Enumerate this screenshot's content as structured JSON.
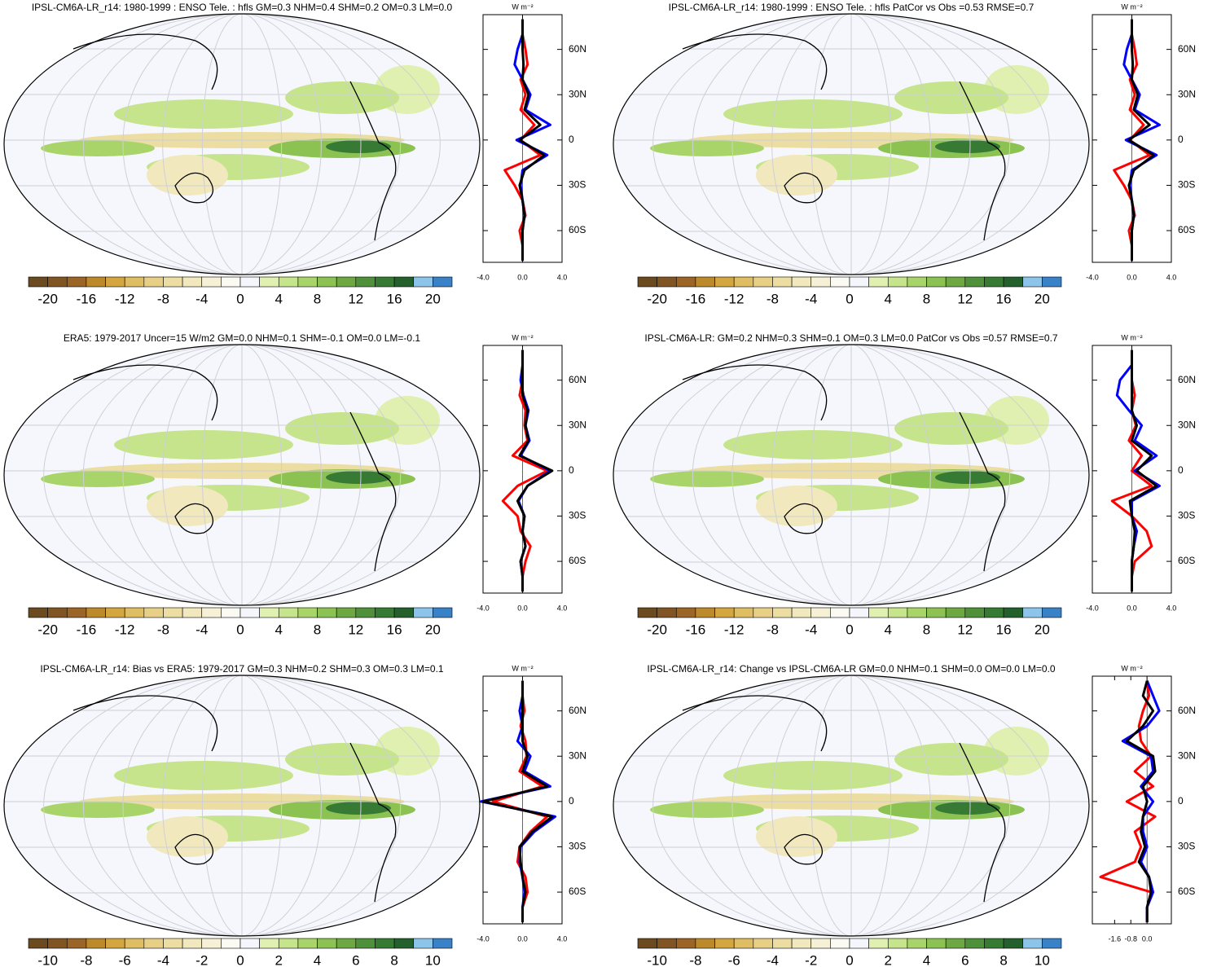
{
  "chart_data": [
    {
      "type": "map",
      "title": "IPSL-CM6A-LR_r14: 1980-1999 : ENSO Tele. : hfls GM=0.3 NHM=0.4 SHM=0.2 OM=0.3 LM=0.0",
      "colorbar_ticks": [
        -20,
        -16,
        -12,
        -8,
        -4,
        0,
        4,
        8,
        12,
        16,
        20
      ],
      "clim": [
        -22,
        22
      ],
      "colors": [
        "#6b4a1f",
        "#805523",
        "#9a6526",
        "#bd8a2b",
        "#d3a640",
        "#dfbd63",
        "#e7cf86",
        "#ecdda3",
        "#f1e8bd",
        "#f5f0d6",
        "#fafaf3",
        "#f4f6fb",
        "#dff0b0",
        "#c5e48c",
        "#a8d46a",
        "#8cc252",
        "#6ea843",
        "#4f913a",
        "#377a34",
        "#24602c",
        "#8cc4ea",
        "#3a82c8"
      ],
      "xlabel": "W m⁻²",
      "xlim": [
        -4,
        4
      ],
      "xticks": [
        {
          "value": -4,
          "label": "-4.0"
        },
        {
          "value": 0,
          "label": "0.0"
        },
        {
          "value": 4,
          "label": "4.0"
        }
      ],
      "ylim": [
        -81,
        83
      ],
      "yticks": [
        {
          "value": 60,
          "label": "60N"
        },
        {
          "value": 30,
          "label": "30N"
        },
        0,
        {
          "value": -30,
          "label": "30S"
        },
        {
          "value": -60,
          "label": "60S"
        }
      ],
      "lat": [
        -80,
        -70,
        -60,
        -50,
        -40,
        -30,
        -20,
        -10,
        0,
        10,
        20,
        30,
        40,
        50,
        60,
        70,
        80
      ],
      "series": [
        {
          "color": "#ff0000",
          "values": [
            0,
            0,
            -0.3,
            0.3,
            0,
            -0.8,
            -1.8,
            1.8,
            -0.2,
            1.2,
            -0.2,
            0.3,
            -0.2,
            0.5,
            0.3,
            0,
            0
          ]
        },
        {
          "color": "#0000ff",
          "values": [
            0,
            0,
            0,
            0.2,
            0,
            -0.2,
            0,
            2.5,
            -0.6,
            2.8,
            0.3,
            0.8,
            0,
            -0.8,
            -0.5,
            0,
            0
          ]
        },
        {
          "color": "#000000",
          "values": [
            0,
            0,
            0,
            0.2,
            0,
            -0.3,
            0.2,
            2.2,
            -0.3,
            1.8,
            0.2,
            0.6,
            0,
            0.1,
            0,
            0,
            0
          ]
        }
      ]
    },
    {
      "type": "map",
      "title": "IPSL-CM6A-LR_r14: 1980-1999 : ENSO Tele. : hfls PatCor vs Obs =0.53 RMSE=0.7",
      "colorbar_ticks": [
        -20,
        -16,
        -12,
        -8,
        -4,
        0,
        4,
        8,
        12,
        16,
        20
      ],
      "clim": [
        -22,
        22
      ],
      "colors": [
        "#6b4a1f",
        "#805523",
        "#9a6526",
        "#bd8a2b",
        "#d3a640",
        "#dfbd63",
        "#e7cf86",
        "#ecdda3",
        "#f1e8bd",
        "#f5f0d6",
        "#fafaf3",
        "#f4f6fb",
        "#dff0b0",
        "#c5e48c",
        "#a8d46a",
        "#8cc252",
        "#6ea843",
        "#4f913a",
        "#377a34",
        "#24602c",
        "#8cc4ea",
        "#3a82c8"
      ],
      "xlabel": "W m⁻²",
      "xlim": [
        -4,
        4
      ],
      "xticks": [
        {
          "value": -4,
          "label": "-4.0"
        },
        {
          "value": 0,
          "label": "0.0"
        },
        {
          "value": 4,
          "label": "4.0"
        }
      ],
      "ylim": [
        -81,
        83
      ],
      "yticks": [
        {
          "value": 60,
          "label": "60N"
        },
        {
          "value": 30,
          "label": "30N"
        },
        0,
        {
          "value": -30,
          "label": "30S"
        },
        {
          "value": -60,
          "label": "60S"
        }
      ],
      "lat": [
        -80,
        -70,
        -60,
        -50,
        -40,
        -30,
        -20,
        -10,
        0,
        10,
        20,
        30,
        40,
        50,
        60,
        70,
        80
      ],
      "series": [
        {
          "color": "#ff0000",
          "values": [
            0,
            0,
            -0.3,
            0.3,
            0,
            -0.8,
            -1.8,
            1.8,
            -0.2,
            1.2,
            -0.2,
            0.3,
            -0.2,
            0.5,
            0.3,
            0,
            0
          ]
        },
        {
          "color": "#0000ff",
          "values": [
            0,
            0,
            0,
            0.2,
            0,
            -0.2,
            0,
            2.5,
            -0.6,
            2.8,
            0.3,
            0.8,
            0,
            -0.8,
            -0.5,
            0,
            0
          ]
        },
        {
          "color": "#000000",
          "values": [
            0,
            0,
            0,
            0.2,
            0,
            -0.3,
            0.2,
            2.2,
            -0.3,
            1.8,
            0.2,
            0.6,
            0,
            0.1,
            0,
            0,
            0
          ]
        }
      ]
    },
    {
      "type": "map",
      "title": "ERA5: 1979-2017 Uncer=15 W/m2 GM=0.0 NHM=0.1 SHM=-0.1 OM=0.0 LM=-0.1",
      "colorbar_ticks": [
        -20,
        -16,
        -12,
        -8,
        -4,
        0,
        4,
        8,
        12,
        16,
        20
      ],
      "clim": [
        -22,
        22
      ],
      "colors": [
        "#6b4a1f",
        "#805523",
        "#9a6526",
        "#bd8a2b",
        "#d3a640",
        "#dfbd63",
        "#e7cf86",
        "#ecdda3",
        "#f1e8bd",
        "#f5f0d6",
        "#fafaf3",
        "#f4f6fb",
        "#dff0b0",
        "#c5e48c",
        "#a8d46a",
        "#8cc252",
        "#6ea843",
        "#4f913a",
        "#377a34",
        "#24602c",
        "#8cc4ea",
        "#3a82c8"
      ],
      "xlabel": "W m⁻²",
      "xlim": [
        -4,
        4
      ],
      "xticks": [
        {
          "value": -4,
          "label": "-4.0"
        },
        {
          "value": 0,
          "label": "0.0"
        },
        {
          "value": 4,
          "label": "4.0"
        }
      ],
      "ylim": [
        -81,
        83
      ],
      "yticks": [
        {
          "value": 60,
          "label": "60N"
        },
        {
          "value": 30,
          "label": "30N"
        },
        0,
        {
          "value": -30,
          "label": "30S"
        },
        {
          "value": -60,
          "label": "60S"
        }
      ],
      "lat": [
        -80,
        -70,
        -60,
        -50,
        -40,
        -30,
        -20,
        -10,
        0,
        10,
        20,
        30,
        40,
        50,
        60,
        70,
        80
      ],
      "series": [
        {
          "color": "#ff0000",
          "values": [
            0,
            0,
            0.3,
            0.8,
            -0.2,
            -0.5,
            -2.0,
            -0.5,
            2.5,
            -1.0,
            0.5,
            0.2,
            0.3,
            -0.3,
            0,
            0,
            0
          ]
        },
        {
          "color": "#0000ff",
          "values": [
            0,
            0,
            -0.2,
            0.3,
            0,
            0.2,
            -0.4,
            0.5,
            2.8,
            -0.2,
            0.7,
            0.3,
            0.6,
            0.1,
            -0.2,
            0,
            0
          ]
        },
        {
          "color": "#000000",
          "values": [
            0,
            0,
            -0.2,
            0.3,
            0,
            0.2,
            -0.5,
            0.5,
            3.0,
            -0.3,
            0.6,
            0.3,
            0.5,
            0,
            0,
            0,
            0
          ]
        }
      ]
    },
    {
      "type": "map",
      "title": "IPSL-CM6A-LR: GM=0.2 NHM=0.3 SHM=0.1 OM=0.3 LM=0.0 PatCor vs Obs =0.57 RMSE=0.7",
      "colorbar_ticks": [
        -20,
        -16,
        -12,
        -8,
        -4,
        0,
        4,
        8,
        12,
        16,
        20
      ],
      "clim": [
        -22,
        22
      ],
      "colors": [
        "#6b4a1f",
        "#805523",
        "#9a6526",
        "#bd8a2b",
        "#d3a640",
        "#dfbd63",
        "#e7cf86",
        "#ecdda3",
        "#f1e8bd",
        "#f5f0d6",
        "#fafaf3",
        "#f4f6fb",
        "#dff0b0",
        "#c5e48c",
        "#a8d46a",
        "#8cc252",
        "#6ea843",
        "#4f913a",
        "#377a34",
        "#24602c",
        "#8cc4ea",
        "#3a82c8"
      ],
      "xlabel": "W m⁻²",
      "xlim": [
        -4,
        4
      ],
      "xticks": [
        {
          "value": -4,
          "label": "-4.0"
        },
        {
          "value": 0,
          "label": "0.0"
        },
        {
          "value": 4,
          "label": "4.0"
        }
      ],
      "ylim": [
        -81,
        83
      ],
      "yticks": [
        {
          "value": 60,
          "label": "60N"
        },
        {
          "value": 30,
          "label": "30N"
        },
        0,
        {
          "value": -30,
          "label": "30S"
        },
        {
          "value": -60,
          "label": "60S"
        }
      ],
      "lat": [
        -80,
        -70,
        -60,
        -50,
        -40,
        -30,
        -20,
        -10,
        0,
        10,
        20,
        30,
        40,
        50,
        60,
        70,
        80
      ],
      "series": [
        {
          "color": "#ff0000",
          "values": [
            0,
            0,
            0.3,
            2.0,
            1.5,
            0,
            -2.0,
            2.0,
            0,
            1.0,
            -0.3,
            0.4,
            0,
            0.3,
            0,
            0,
            0
          ]
        },
        {
          "color": "#0000ff",
          "values": [
            0,
            0,
            0,
            0.2,
            0.5,
            0,
            0,
            2.8,
            0.3,
            2.5,
            0.3,
            1.0,
            -0.3,
            -1.5,
            -1.2,
            0,
            0
          ]
        },
        {
          "color": "#000000",
          "values": [
            0,
            0,
            0,
            0.2,
            0.3,
            0,
            -0.2,
            2.5,
            0.5,
            2.0,
            0,
            0.5,
            0,
            0,
            0,
            0,
            0
          ]
        }
      ]
    },
    {
      "type": "map",
      "title": "IPSL-CM6A-LR_r14: Bias vs ERA5: 1979-2017 GM=0.3 NHM=0.2 SHM=0.3 OM=0.3 LM=0.1",
      "colorbar_ticks": [
        -10,
        -8,
        -6,
        -4,
        -2,
        0,
        2,
        4,
        6,
        8,
        10
      ],
      "clim": [
        -11,
        11
      ],
      "colors": [
        "#6b4a1f",
        "#805523",
        "#9a6526",
        "#bd8a2b",
        "#d3a640",
        "#dfbd63",
        "#e7cf86",
        "#ecdda3",
        "#f1e8bd",
        "#f5f0d6",
        "#fafaf3",
        "#f4f6fb",
        "#dff0b0",
        "#c5e48c",
        "#a8d46a",
        "#8cc252",
        "#6ea843",
        "#4f913a",
        "#377a34",
        "#24602c",
        "#8cc4ea",
        "#3a82c8"
      ],
      "xlabel": "W m⁻²",
      "xlim": [
        -4,
        4
      ],
      "xticks": [
        {
          "value": -4,
          "label": "-4.0"
        },
        {
          "value": 0,
          "label": "0.0"
        },
        {
          "value": 4,
          "label": "4.0"
        }
      ],
      "ylim": [
        -81,
        83
      ],
      "yticks": [
        {
          "value": 60,
          "label": "60N"
        },
        {
          "value": 30,
          "label": "30N"
        },
        0,
        {
          "value": -30,
          "label": "30S"
        },
        {
          "value": -60,
          "label": "60S"
        }
      ],
      "lat": [
        -80,
        -70,
        -60,
        -50,
        -40,
        -30,
        -20,
        -10,
        0,
        10,
        20,
        30,
        40,
        50,
        60,
        70,
        80
      ],
      "series": [
        {
          "color": "#ff0000",
          "values": [
            0,
            0,
            0.5,
            0.3,
            -0.5,
            -0.3,
            0.8,
            2.5,
            -3.0,
            2.0,
            -0.3,
            0.4,
            0.3,
            -0.2,
            0.2,
            0,
            0
          ]
        },
        {
          "color": "#0000ff",
          "values": [
            0,
            0,
            0.2,
            0,
            -0.3,
            -0.2,
            1.2,
            3.3,
            -4.2,
            2.8,
            0.2,
            0.8,
            -0.5,
            0,
            -0.3,
            0,
            0
          ]
        },
        {
          "color": "#000000",
          "values": [
            0,
            0,
            0.3,
            0,
            -0.2,
            -0.3,
            1.0,
            3.0,
            -4.0,
            2.5,
            0,
            0.5,
            0,
            0,
            0,
            0,
            0
          ]
        }
      ]
    },
    {
      "type": "map",
      "title": "IPSL-CM6A-LR_r14: Change vs IPSL-CM6A-LR GM=0.0 NHM=0.1 SHM=0.0 OM=0.0 LM=0.0",
      "colorbar_ticks": [
        -10,
        -8,
        -6,
        -4,
        -2,
        0,
        2,
        4,
        6,
        8,
        10
      ],
      "clim": [
        -11,
        11
      ],
      "colors": [
        "#6b4a1f",
        "#805523",
        "#9a6526",
        "#bd8a2b",
        "#d3a640",
        "#dfbd63",
        "#e7cf86",
        "#ecdda3",
        "#f1e8bd",
        "#f5f0d6",
        "#fafaf3",
        "#f4f6fb",
        "#dff0b0",
        "#c5e48c",
        "#a8d46a",
        "#8cc252",
        "#6ea843",
        "#4f913a",
        "#377a34",
        "#24602c",
        "#8cc4ea",
        "#3a82c8"
      ],
      "xlabel": "W m⁻²",
      "xlim": [
        -2.7,
        1.2
      ],
      "xticks": [
        -1.6,
        -0.8,
        {
          "value": 0,
          "label": "0.0"
        }
      ],
      "ylim": [
        -81,
        83
      ],
      "yticks": [
        {
          "value": 60,
          "label": "60N"
        },
        {
          "value": 30,
          "label": "30N"
        },
        0,
        {
          "value": -30,
          "label": "30S"
        },
        {
          "value": -60,
          "label": "60S"
        }
      ],
      "lat": [
        -80,
        -70,
        -60,
        -50,
        -40,
        -30,
        -20,
        -10,
        0,
        10,
        20,
        30,
        40,
        50,
        60,
        70,
        80
      ],
      "series": [
        {
          "color": "#ff0000",
          "values": [
            0,
            0,
            0.2,
            -2.3,
            -0.6,
            -0.3,
            -0.6,
            0.4,
            -1.0,
            0.3,
            -0.6,
            0.2,
            -0.3,
            -0.4,
            -0.2,
            0.1,
            0
          ]
        },
        {
          "color": "#0000ff",
          "values": [
            0,
            0,
            0.3,
            0.1,
            -0.3,
            0,
            -0.2,
            -0.2,
            0.3,
            -0.3,
            0.3,
            0.2,
            -1.2,
            0,
            0.6,
            0.3,
            0
          ]
        },
        {
          "color": "#000000",
          "values": [
            0,
            0,
            0.2,
            0.1,
            -0.4,
            -0.1,
            -0.3,
            -0.2,
            0,
            -0.2,
            0.4,
            0.3,
            -1.0,
            -0.2,
            0.3,
            -0.2,
            0
          ]
        }
      ]
    }
  ]
}
